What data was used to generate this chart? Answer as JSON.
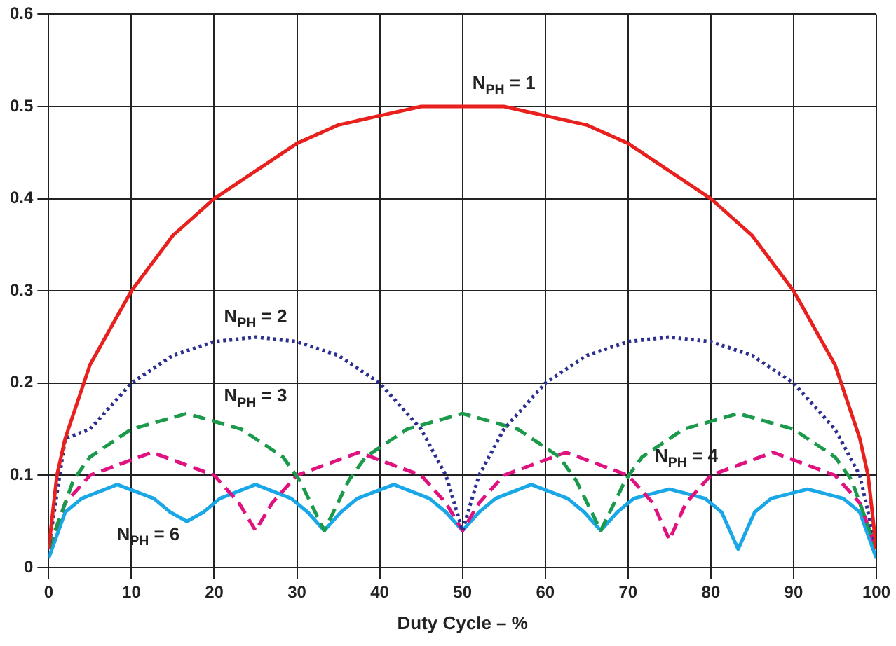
{
  "chart_data": {
    "type": "line",
    "xlabel": "Duty Cycle – %",
    "xlim": [
      0,
      100
    ],
    "xticks": [
      0,
      10,
      20,
      30,
      40,
      50,
      60,
      70,
      80,
      90,
      100
    ],
    "ylim": [
      0,
      0.6
    ],
    "yticks": [
      0,
      0.1,
      0.2,
      0.3,
      0.4,
      0.5,
      0.6
    ],
    "grid": true,
    "legend": false,
    "marker": "none",
    "series": [
      {
        "name": "N$_{PH}$ = 1",
        "color": "#e8201e",
        "line_style": "solid",
        "x": [
          0,
          1,
          2,
          5,
          10,
          15,
          20,
          25,
          30,
          35,
          40,
          45,
          50,
          55,
          60,
          65,
          70,
          75,
          80,
          85,
          90,
          95,
          98,
          99,
          100
        ],
        "values": [
          0.02,
          0.1,
          0.14,
          0.22,
          0.3,
          0.36,
          0.4,
          0.43,
          0.46,
          0.48,
          0.49,
          0.5,
          0.5,
          0.5,
          0.49,
          0.48,
          0.46,
          0.43,
          0.4,
          0.36,
          0.3,
          0.22,
          0.14,
          0.1,
          0.02
        ]
      },
      {
        "name": "N$_{PH}$ = 2",
        "color": "#2b2f8f",
        "line_style": "dotted",
        "x": [
          0,
          2,
          5,
          10,
          15,
          20,
          25,
          30,
          35,
          40,
          45,
          48,
          50,
          52,
          55,
          60,
          65,
          70,
          75,
          80,
          85,
          90,
          95,
          98,
          100
        ],
        "values": [
          0.02,
          0.14,
          0.15,
          0.2,
          0.23,
          0.245,
          0.25,
          0.245,
          0.23,
          0.2,
          0.15,
          0.1,
          0.04,
          0.1,
          0.15,
          0.2,
          0.23,
          0.245,
          0.25,
          0.245,
          0.23,
          0.2,
          0.15,
          0.1,
          0.02
        ]
      },
      {
        "name": "N$_{PH}$ = 3",
        "color": "#1a9a4a",
        "line_style": "dashed",
        "x": [
          0,
          3,
          5,
          10,
          16.7,
          23.3,
          28.3,
          30.3,
          33.3,
          36.3,
          38.3,
          43.3,
          50,
          56.7,
          61.7,
          63.7,
          66.7,
          69.7,
          71.7,
          76.7,
          83.3,
          90,
          95,
          97,
          100
        ],
        "values": [
          0.02,
          0.095,
          0.12,
          0.15,
          0.167,
          0.15,
          0.12,
          0.095,
          0.04,
          0.095,
          0.12,
          0.15,
          0.167,
          0.15,
          0.12,
          0.095,
          0.04,
          0.095,
          0.12,
          0.15,
          0.167,
          0.15,
          0.12,
          0.095,
          0.02
        ]
      },
      {
        "name": "N$_{PH}$ = 4",
        "color": "#e0127f",
        "line_style": "dashed",
        "x": [
          0,
          2,
          5,
          12.5,
          20,
          23,
          25,
          27,
          30,
          37.5,
          45,
          48,
          50,
          52,
          55,
          62.5,
          70,
          73,
          75,
          77,
          80,
          87.5,
          95,
          98,
          100
        ],
        "values": [
          0.02,
          0.07,
          0.1,
          0.125,
          0.1,
          0.07,
          0.04,
          0.07,
          0.1,
          0.125,
          0.1,
          0.07,
          0.04,
          0.07,
          0.1,
          0.125,
          0.1,
          0.07,
          0.03,
          0.07,
          0.1,
          0.125,
          0.1,
          0.07,
          0.02
        ]
      },
      {
        "name": "N$_{PH}$ = 6",
        "color": "#1aa7e8",
        "line_style": "solid",
        "x": [
          0,
          2,
          4,
          8.3,
          12.7,
          14.7,
          16.7,
          18.7,
          20.7,
          25,
          29.3,
          31.3,
          33.3,
          35.3,
          37.3,
          41.7,
          46,
          48,
          50,
          52,
          54,
          58.3,
          62.7,
          64.7,
          66.7,
          68.7,
          70.7,
          75,
          79.3,
          81.3,
          83.3,
          85.3,
          87.3,
          91.7,
          96,
          98,
          100
        ],
        "values": [
          0.01,
          0.06,
          0.075,
          0.09,
          0.075,
          0.06,
          0.05,
          0.06,
          0.075,
          0.09,
          0.075,
          0.06,
          0.04,
          0.06,
          0.075,
          0.09,
          0.075,
          0.06,
          0.04,
          0.06,
          0.075,
          0.09,
          0.075,
          0.06,
          0.04,
          0.06,
          0.075,
          0.085,
          0.075,
          0.06,
          0.02,
          0.06,
          0.075,
          0.085,
          0.075,
          0.06,
          0.01
        ]
      }
    ]
  }
}
